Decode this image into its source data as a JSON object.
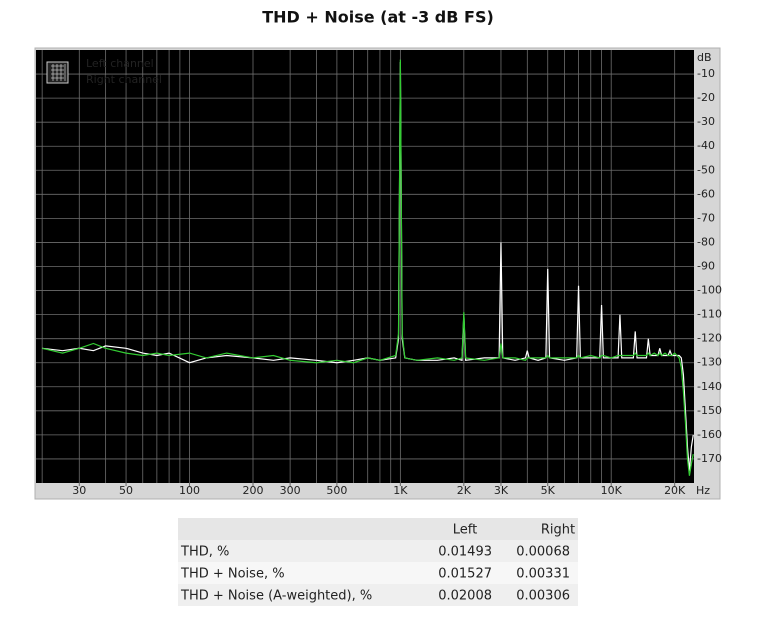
{
  "chart_data": {
    "type": "line",
    "title": "THD + Noise (at -3 dB FS)",
    "y_unit": "dB",
    "x_unit": "Hz",
    "log_x": true,
    "grid": true,
    "legend": "top-left",
    "xlim": [
      18.7,
      24700
    ],
    "ylim": [
      -180,
      0
    ],
    "xticks": [
      30,
      50,
      100,
      200,
      300,
      500,
      {
        "value": 1000,
        "label": "1K"
      },
      {
        "value": 2000,
        "label": "2K"
      },
      {
        "value": 3000,
        "label": "3K"
      },
      {
        "value": 5000,
        "label": "5K"
      },
      {
        "value": 10000,
        "label": "10K"
      },
      {
        "value": 20000,
        "label": "20K"
      }
    ],
    "xgrid": [
      20,
      30,
      40,
      50,
      60,
      70,
      80,
      90,
      100,
      200,
      300,
      400,
      500,
      600,
      700,
      800,
      900,
      1000,
      2000,
      3000,
      4000,
      5000,
      6000,
      7000,
      8000,
      9000,
      10000,
      20000
    ],
    "yticks": [
      -10,
      -20,
      -30,
      -40,
      -50,
      -60,
      -70,
      -80,
      -90,
      -100,
      -110,
      -120,
      -130,
      -140,
      -150,
      -160,
      -170
    ],
    "x": [
      20,
      25,
      30,
      35,
      40,
      50,
      60,
      70,
      80,
      100,
      120,
      150,
      200,
      250,
      300,
      400,
      500,
      600,
      700,
      800,
      950,
      980,
      1000,
      1020,
      1050,
      1200,
      1500,
      1800,
      1960,
      2000,
      2040,
      2500,
      2940,
      3000,
      3060,
      3500,
      3920,
      4000,
      4080,
      4500,
      4900,
      5000,
      5100,
      6000,
      6860,
      7000,
      7140,
      8000,
      8820,
      9000,
      9180,
      10000,
      10780,
      11000,
      11220,
      12000,
      12740,
      13000,
      13260,
      14000,
      14700,
      15000,
      15300,
      16000,
      16660,
      17000,
      17340,
      18000,
      18620,
      19000,
      19380,
      20000,
      20500,
      21000,
      21500,
      22000,
      22500,
      23000,
      23500,
      24000,
      24500
    ],
    "series": [
      {
        "name": "Left channel",
        "color": "#ffffff",
        "values": [
          -124,
          -125,
          -124,
          -125,
          -123,
          -124,
          -126,
          -127,
          -126,
          -130,
          -128,
          -127,
          -128,
          -129,
          -128,
          -129,
          -130,
          -129,
          -128,
          -129,
          -128,
          -120,
          -5,
          -120,
          -128,
          -129,
          -129,
          -128,
          -129,
          -110,
          -129,
          -128,
          -128,
          -80,
          -128,
          -129,
          -128,
          -125,
          -128,
          -129,
          -128,
          -91,
          -128,
          -129,
          -128,
          -98,
          -128,
          -128,
          -128,
          -106,
          -128,
          -128,
          -128,
          -110,
          -128,
          -128,
          -128,
          -117,
          -128,
          -128,
          -128,
          -120,
          -127,
          -127,
          -127,
          -124,
          -127,
          -127,
          -127,
          -125,
          -127,
          -127,
          -127,
          -127,
          -128,
          -135,
          -150,
          -165,
          -175,
          -165,
          -160
        ]
      },
      {
        "name": "Right channel",
        "color": "#33cc33",
        "values": [
          -124,
          -126,
          -124,
          -122,
          -124,
          -126,
          -127,
          -126,
          -127,
          -126,
          -128,
          -126,
          -128,
          -127,
          -129,
          -130,
          -129,
          -130,
          -128,
          -129,
          -127,
          -118,
          -4,
          -118,
          -128,
          -129,
          -128,
          -129,
          -128,
          -109,
          -128,
          -129,
          -128,
          -122,
          -128,
          -128,
          -129,
          -128,
          -128,
          -128,
          -128,
          -127,
          -128,
          -128,
          -128,
          -127,
          -128,
          -127,
          -128,
          -127,
          -127,
          -128,
          -127,
          -127,
          -127,
          -127,
          -127,
          -126,
          -127,
          -127,
          -127,
          -126,
          -127,
          -126,
          -127,
          -126,
          -127,
          -126,
          -127,
          -127,
          -127,
          -126,
          -127,
          -128,
          -132,
          -142,
          -155,
          -170,
          -177,
          -172,
          -168
        ]
      }
    ]
  },
  "table": {
    "columns": [
      "Left",
      "Right"
    ],
    "rows": [
      [
        "THD, %",
        "0.01493",
        "0.00068"
      ],
      [
        "THD + Noise, %",
        "0.01527",
        "0.00331"
      ],
      [
        "THD + Noise (A-weighted), %",
        "0.02008",
        "0.00306"
      ]
    ]
  }
}
